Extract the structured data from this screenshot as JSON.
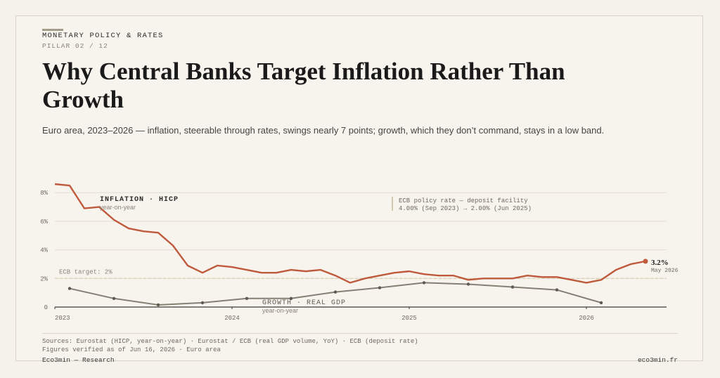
{
  "header": {
    "kicker": "MONETARY POLICY & RATES",
    "pillar": "PILLAR 02 / 12",
    "title": "Why Central Banks Target Inflation Rather Than Growth",
    "subtitle": "Euro area, 2023–2026 — inflation, steerable through rates, swings nearly 7 points; growth, which they don’t command, stays in a low band."
  },
  "chart_data": {
    "type": "line",
    "x_ticks": [
      "2023",
      "2024",
      "2025",
      "2026"
    ],
    "y_ticks": [
      "0",
      "2%",
      "4%",
      "6%",
      "8%"
    ],
    "ylim": [
      0,
      8.6
    ],
    "grid": true,
    "series": [
      {
        "name": "INFLATION · HICP",
        "sublabel": "year-on-year",
        "color": "#bf5a3c",
        "points": [
          [
            "2023-01",
            8.6
          ],
          [
            "2023-02",
            8.5
          ],
          [
            "2023-03",
            6.9
          ],
          [
            "2023-04",
            7.0
          ],
          [
            "2023-05",
            6.1
          ],
          [
            "2023-06",
            5.5
          ],
          [
            "2023-07",
            5.3
          ],
          [
            "2023-08",
            5.2
          ],
          [
            "2023-09",
            4.3
          ],
          [
            "2023-10",
            2.9
          ],
          [
            "2023-11",
            2.4
          ],
          [
            "2023-12",
            2.9
          ],
          [
            "2024-01",
            2.8
          ],
          [
            "2024-02",
            2.6
          ],
          [
            "2024-03",
            2.4
          ],
          [
            "2024-04",
            2.4
          ],
          [
            "2024-05",
            2.6
          ],
          [
            "2024-06",
            2.5
          ],
          [
            "2024-07",
            2.6
          ],
          [
            "2024-08",
            2.2
          ],
          [
            "2024-09",
            1.7
          ],
          [
            "2024-10",
            2.0
          ],
          [
            "2024-11",
            2.2
          ],
          [
            "2024-12",
            2.4
          ],
          [
            "2025-01",
            2.5
          ],
          [
            "2025-02",
            2.3
          ],
          [
            "2025-03",
            2.2
          ],
          [
            "2025-04",
            2.2
          ],
          [
            "2025-05",
            1.9
          ],
          [
            "2025-06",
            2.0
          ],
          [
            "2025-07",
            2.0
          ],
          [
            "2025-08",
            2.0
          ],
          [
            "2025-09",
            2.2
          ],
          [
            "2025-10",
            2.1
          ],
          [
            "2025-11",
            2.1
          ],
          [
            "2025-12",
            1.9
          ],
          [
            "2026-01",
            1.7
          ],
          [
            "2026-02",
            1.9
          ],
          [
            "2026-03",
            2.6
          ],
          [
            "2026-04",
            3.0
          ],
          [
            "2026-05",
            3.2
          ]
        ],
        "end_label": "3.2%",
        "end_date": "May 2026"
      },
      {
        "name": "GROWTH · REAL GDP",
        "sublabel": "year-on-year",
        "color": "#858074",
        "points": [
          [
            "2023-02",
            1.3
          ],
          [
            "2023-05",
            0.6
          ],
          [
            "2023-08",
            0.15
          ],
          [
            "2023-11",
            0.3
          ],
          [
            "2024-02",
            0.6
          ],
          [
            "2024-05",
            0.6
          ],
          [
            "2024-08",
            1.05
          ],
          [
            "2024-11",
            1.35
          ],
          [
            "2025-02",
            1.7
          ],
          [
            "2025-05",
            1.6
          ],
          [
            "2025-08",
            1.4
          ],
          [
            "2025-11",
            1.2
          ],
          [
            "2026-02",
            0.3
          ]
        ]
      }
    ],
    "target": {
      "value": 2,
      "label": "ECB target: 2%"
    },
    "annotation": {
      "line1": "ECB policy rate — deposit facility",
      "line2": "4.00% (Sep 2023) → 2.00% (Jun 2025)"
    }
  },
  "footer": {
    "sources": "Sources: Eurostat (HICP, year-on-year) · Eurostat / ECB (real GDP volume, YoY) · ECB (deposit rate)",
    "verified": "Figures verified as of Jun 16, 2026 · Euro area",
    "brand_left": "Eco3min — Research",
    "brand_right": "eco3min.fr"
  },
  "colors": {
    "background": "#f7f4ee",
    "inflation": "#bf5a3c",
    "growth": "#858074",
    "target_line": "#d8c7a4"
  }
}
